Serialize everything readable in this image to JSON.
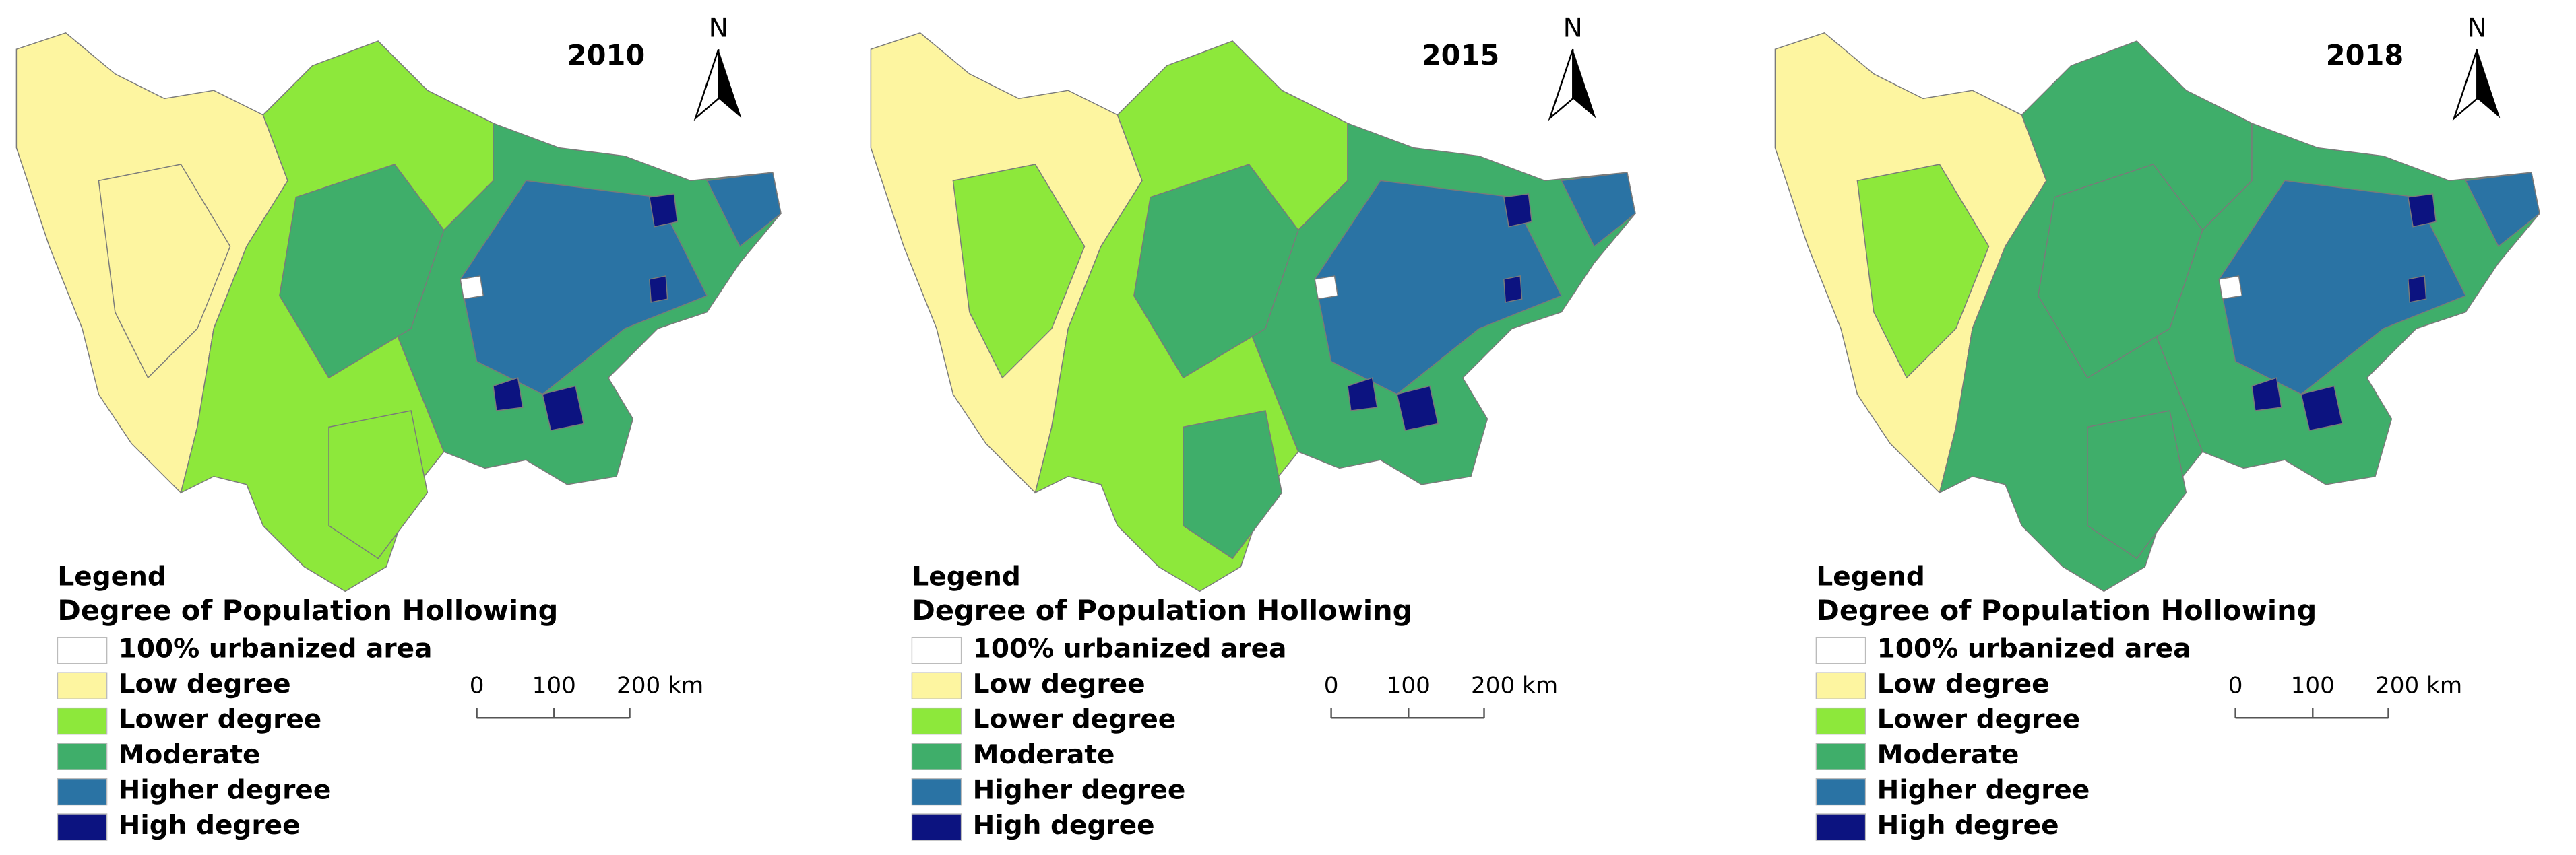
{
  "panels": [
    {
      "year": "2010",
      "north": "N",
      "legend": {
        "title": "Legend",
        "subtitle": "Degree of Population Hollowing",
        "items": [
          {
            "label": "100% urbanized area",
            "color": "#ffffff"
          },
          {
            "label": "Low degree",
            "color": "#fdf5a0"
          },
          {
            "label": "Lower degree",
            "color": "#8de83b"
          },
          {
            "label": "Moderate",
            "color": "#3fae6a"
          },
          {
            "label": "Higher degree",
            "color": "#2a73a4"
          },
          {
            "label": "High degree",
            "color": "#0c1380"
          }
        ]
      },
      "scale": {
        "labels": [
          "0",
          "100",
          "200 km"
        ]
      }
    },
    {
      "year": "2015",
      "north": "N",
      "legend": {
        "title": "Legend",
        "subtitle": "Degree of Population Hollowing",
        "items": [
          {
            "label": "100% urbanized area",
            "color": "#ffffff"
          },
          {
            "label": "Low degree",
            "color": "#fdf5a0"
          },
          {
            "label": "Lower degree",
            "color": "#8de83b"
          },
          {
            "label": "Moderate",
            "color": "#3fae6a"
          },
          {
            "label": "Higher degree",
            "color": "#2a73a4"
          },
          {
            "label": "High degree",
            "color": "#0c1380"
          }
        ]
      },
      "scale": {
        "labels": [
          "0",
          "100",
          "200 km"
        ]
      }
    },
    {
      "year": "2018",
      "north": "N",
      "legend": {
        "title": "Legend",
        "subtitle": "Degree of Population Hollowing",
        "items": [
          {
            "label": "100% urbanized area",
            "color": "#ffffff"
          },
          {
            "label": "Low degree",
            "color": "#fdf5a0"
          },
          {
            "label": "Lower degree",
            "color": "#8de83b"
          },
          {
            "label": "Moderate",
            "color": "#3fae6a"
          },
          {
            "label": "Higher degree",
            "color": "#2a73a4"
          },
          {
            "label": "High degree",
            "color": "#0c1380"
          }
        ]
      },
      "scale": {
        "labels": [
          "0",
          "100",
          "200 km"
        ]
      }
    }
  ]
}
